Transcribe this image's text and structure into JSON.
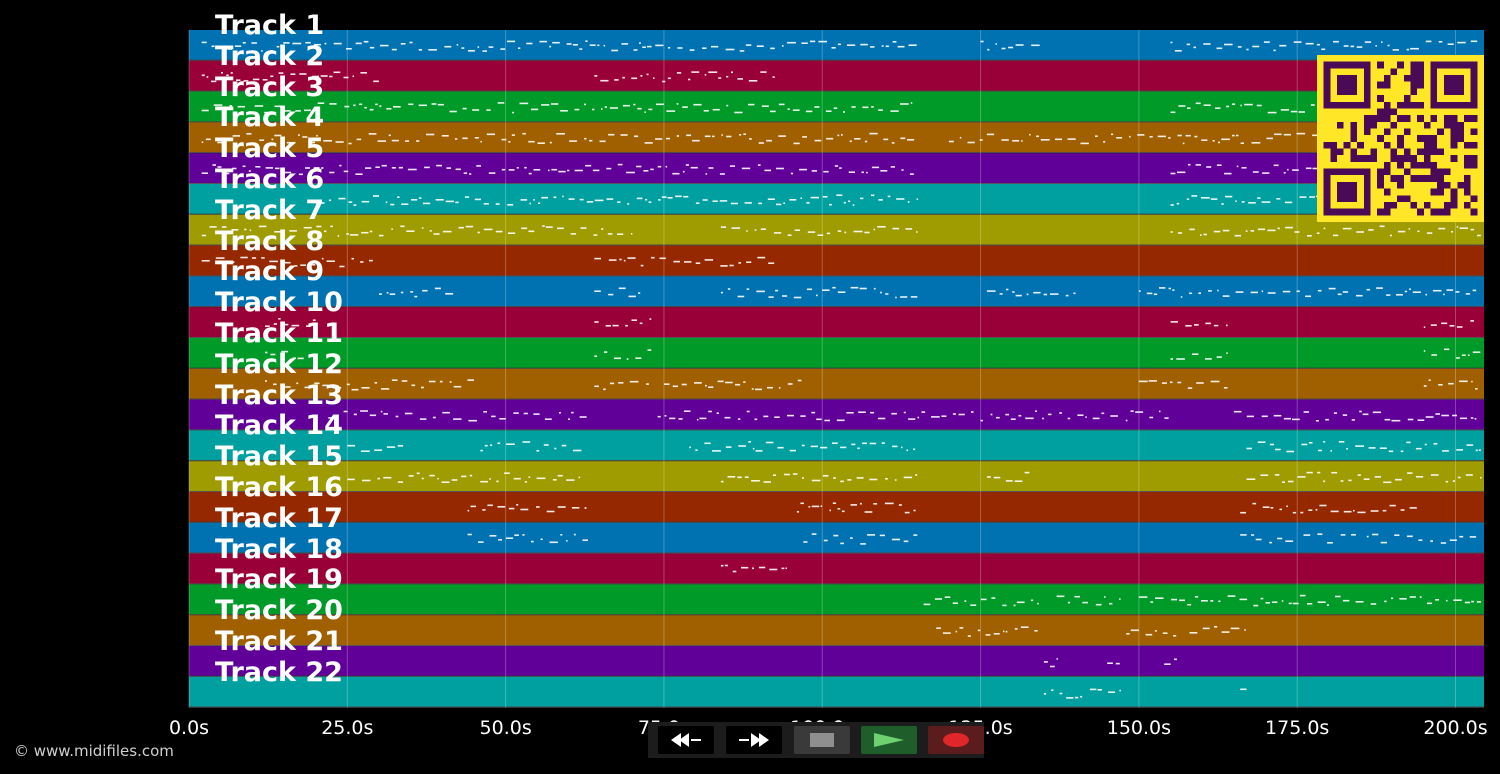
{
  "tracks": [
    {
      "label": "Track 1",
      "color": "#0072b2"
    },
    {
      "label": "Track 2",
      "color": "#9a0038"
    },
    {
      "label": "Track 3",
      "color": "#009a28"
    },
    {
      "label": "Track 4",
      "color": "#a06000"
    },
    {
      "label": "Track 5",
      "color": "#600098"
    },
    {
      "label": "Track 6",
      "color": "#00a0a0"
    },
    {
      "label": "Track 7",
      "color": "#9e9c00"
    },
    {
      "label": "Track 8",
      "color": "#962800"
    },
    {
      "label": "Track 9",
      "color": "#0072b2"
    },
    {
      "label": "Track 10",
      "color": "#9a0038"
    },
    {
      "label": "Track 11",
      "color": "#009a28"
    },
    {
      "label": "Track 12",
      "color": "#a06000"
    },
    {
      "label": "Track 13",
      "color": "#600098"
    },
    {
      "label": "Track 14",
      "color": "#00a0a0"
    },
    {
      "label": "Track 15",
      "color": "#9e9c00"
    },
    {
      "label": "Track 16",
      "color": "#962800"
    },
    {
      "label": "Track 17",
      "color": "#0072b2"
    },
    {
      "label": "Track 18",
      "color": "#9a0038"
    },
    {
      "label": "Track 19",
      "color": "#009a28"
    },
    {
      "label": "Track 20",
      "color": "#a06000"
    },
    {
      "label": "Track 21",
      "color": "#600098"
    },
    {
      "label": "Track 22",
      "color": "#00a0a0"
    }
  ],
  "time_axis": {
    "min_s": 0,
    "max_s": 204.5,
    "ticks": [
      {
        "value": 0,
        "label": "0.0s"
      },
      {
        "value": 25,
        "label": "25.0s"
      },
      {
        "value": 50,
        "label": "50.0s"
      },
      {
        "value": 75,
        "label": "75.0s"
      },
      {
        "value": 100,
        "label": "100.0s"
      },
      {
        "value": 125,
        "label": "125.0s"
      },
      {
        "value": 150,
        "label": "150.0s"
      },
      {
        "value": 175,
        "label": "175.0s"
      },
      {
        "value": 200,
        "label": "200.0s"
      }
    ]
  },
  "note_segments": [
    {
      "track": 1,
      "sections": [
        [
          2,
          115
        ],
        [
          125,
          135
        ],
        [
          155,
          204
        ]
      ]
    },
    {
      "track": 2,
      "sections": [
        [
          2,
          30
        ],
        [
          64,
          93
        ]
      ]
    },
    {
      "track": 3,
      "sections": [
        [
          2,
          115
        ],
        [
          155,
          204
        ]
      ]
    },
    {
      "track": 4,
      "sections": [
        [
          2,
          115
        ],
        [
          120,
          204
        ]
      ]
    },
    {
      "track": 5,
      "sections": [
        [
          2,
          115
        ],
        [
          155,
          204
        ]
      ]
    },
    {
      "track": 6,
      "sections": [
        [
          20,
          115
        ],
        [
          155,
          204
        ]
      ]
    },
    {
      "track": 7,
      "sections": [
        [
          2,
          70
        ],
        [
          84,
          115
        ],
        [
          155,
          204
        ]
      ]
    },
    {
      "track": 8,
      "sections": [
        [
          2,
          30
        ],
        [
          64,
          93
        ]
      ]
    },
    {
      "track": 9,
      "sections": [
        [
          30,
          42
        ],
        [
          64,
          72
        ],
        [
          84,
          115
        ],
        [
          126,
          140
        ],
        [
          150,
          204
        ]
      ]
    },
    {
      "track": 10,
      "sections": [
        [
          12,
          20
        ],
        [
          64,
          73
        ],
        [
          155,
          164
        ],
        [
          195,
          204
        ]
      ]
    },
    {
      "track": 11,
      "sections": [
        [
          12,
          20
        ],
        [
          64,
          73
        ],
        [
          155,
          164
        ],
        [
          195,
          204
        ]
      ]
    },
    {
      "track": 12,
      "sections": [
        [
          12,
          45
        ],
        [
          64,
          73
        ],
        [
          75,
          97
        ],
        [
          150,
          164
        ],
        [
          195,
          204
        ]
      ]
    },
    {
      "track": 13,
      "sections": [
        [
          22,
          63
        ],
        [
          74,
          155
        ],
        [
          165,
          204
        ]
      ]
    },
    {
      "track": 14,
      "sections": [
        [
          25,
          35
        ],
        [
          46,
          62
        ],
        [
          79,
          115
        ],
        [
          167,
          204
        ]
      ]
    },
    {
      "track": 15,
      "sections": [
        [
          25,
          45
        ],
        [
          46,
          62
        ],
        [
          84,
          115
        ],
        [
          126,
          133
        ],
        [
          167,
          204
        ]
      ]
    },
    {
      "track": 16,
      "sections": [
        [
          44,
          63
        ],
        [
          96,
          115
        ],
        [
          166,
          194
        ]
      ]
    },
    {
      "track": 17,
      "sections": [
        [
          44,
          53
        ],
        [
          54,
          63
        ],
        [
          97,
          105
        ],
        [
          106,
          115
        ],
        [
          166,
          175
        ],
        [
          176,
          185
        ],
        [
          186,
          195
        ],
        [
          196,
          204
        ]
      ]
    },
    {
      "track": 18,
      "sections": [
        [
          84,
          95
        ]
      ]
    },
    {
      "track": 19,
      "sections": [
        [
          116,
          134
        ],
        [
          137,
          147
        ],
        [
          150,
          204
        ]
      ]
    },
    {
      "track": 20,
      "sections": [
        [
          118,
          134
        ],
        [
          148,
          156
        ],
        [
          158,
          167
        ]
      ]
    },
    {
      "track": 21,
      "sections": [
        [
          135,
          137
        ],
        [
          145,
          147
        ],
        [
          154,
          156
        ]
      ]
    },
    {
      "track": 22,
      "sections": [
        [
          135,
          147
        ],
        [
          166,
          167
        ]
      ]
    }
  ],
  "transport": {
    "rewind": "rewind-icon",
    "fast_forward": "fast-forward-icon",
    "stop": "stop-icon",
    "play": "play-icon",
    "record": "record-icon"
  },
  "copyright": "© www.midifiles.com",
  "qr_colors": {
    "fg": "#4b0a56",
    "bg": "#ffe627"
  }
}
